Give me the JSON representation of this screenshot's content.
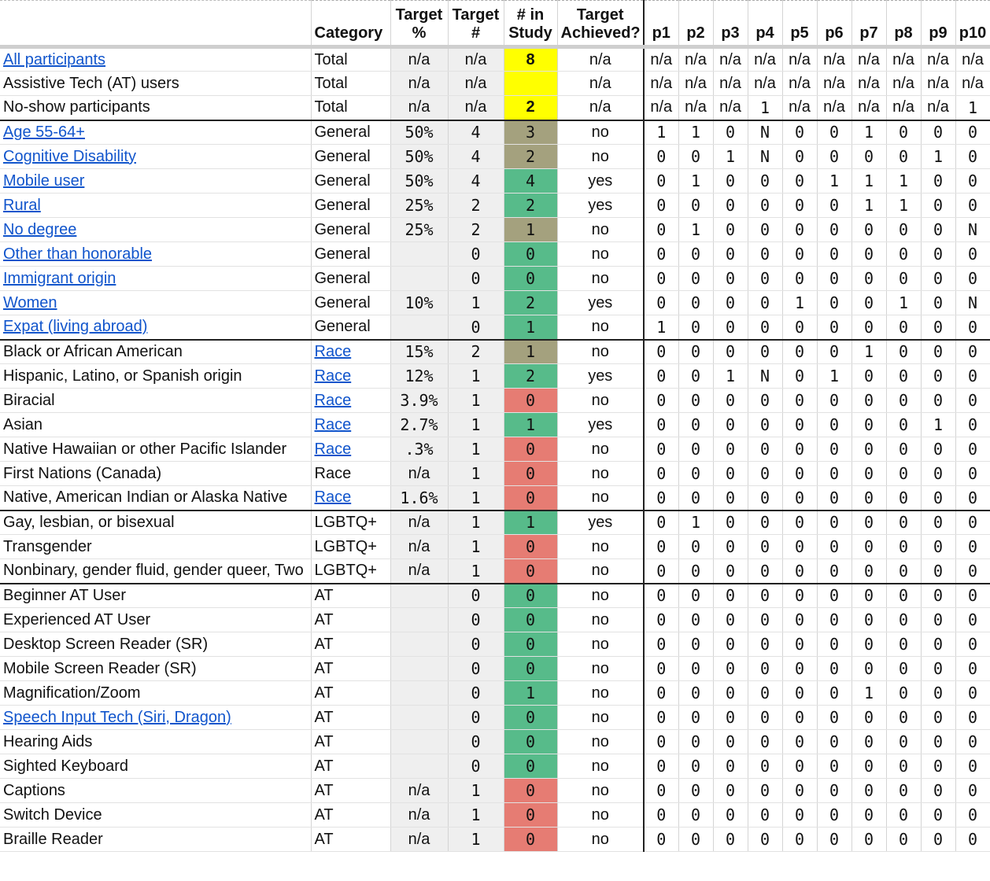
{
  "headers": {
    "label": "",
    "category": "Category",
    "target_pct": "Target %",
    "target_num": "Target #",
    "in_study": "# in Study",
    "achieved": "Target Achieved?",
    "participants": [
      "p1",
      "p2",
      "p3",
      "p4",
      "p5",
      "p6",
      "p7",
      "p8",
      "p9",
      "p10"
    ]
  },
  "colors": {
    "yellow": "#ffff00",
    "green": "#57bb8a",
    "olive": "#a4a17e",
    "red": "#e67c73",
    "link": "#1155cc"
  },
  "rows": [
    {
      "label": "All participants",
      "link": true,
      "category": "Total",
      "cat_link": false,
      "pct": "n/a",
      "num": "n/a",
      "study": "8",
      "study_color": "yellow",
      "bold": true,
      "achieved": "n/a",
      "p": [
        "n/a",
        "n/a",
        "n/a",
        "n/a",
        "n/a",
        "n/a",
        "n/a",
        "n/a",
        "n/a",
        "n/a"
      ],
      "group_start": false
    },
    {
      "label": "Assistive Tech (AT) users",
      "link": false,
      "category": "Total",
      "cat_link": false,
      "pct": "n/a",
      "num": "n/a",
      "study": "",
      "study_color": "yellow",
      "bold": true,
      "achieved": "n/a",
      "p": [
        "n/a",
        "n/a",
        "n/a",
        "n/a",
        "n/a",
        "n/a",
        "n/a",
        "n/a",
        "n/a",
        "n/a"
      ],
      "group_start": false
    },
    {
      "label": "No-show participants",
      "link": false,
      "category": "Total",
      "cat_link": false,
      "pct": "n/a",
      "num": "n/a",
      "study": "2",
      "study_color": "yellow",
      "bold": true,
      "achieved": "n/a",
      "p": [
        "n/a",
        "n/a",
        "n/a",
        "1",
        "n/a",
        "n/a",
        "n/a",
        "n/a",
        "n/a",
        "1"
      ],
      "group_start": false
    },
    {
      "label": "Age 55-64+",
      "link": true,
      "category": "General",
      "cat_link": false,
      "pct": "50%",
      "num": "4",
      "study": "3",
      "study_color": "olive",
      "achieved": "no",
      "p": [
        "1",
        "1",
        "0",
        "N",
        "0",
        "0",
        "1",
        "0",
        "0",
        "0"
      ],
      "group_start": true
    },
    {
      "label": "Cognitive Disability",
      "link": true,
      "category": "General",
      "cat_link": false,
      "pct": "50%",
      "num": "4",
      "study": "2",
      "study_color": "olive",
      "achieved": "no",
      "p": [
        "0",
        "0",
        "1",
        "N",
        "0",
        "0",
        "0",
        "0",
        "1",
        "0"
      ],
      "group_start": false
    },
    {
      "label": "Mobile user",
      "link": true,
      "category": "General",
      "cat_link": false,
      "pct": "50%",
      "num": "4",
      "study": "4",
      "study_color": "green",
      "achieved": "yes",
      "p": [
        "0",
        "1",
        "0",
        "0",
        "0",
        "1",
        "1",
        "1",
        "0",
        "0"
      ],
      "group_start": false
    },
    {
      "label": "Rural",
      "link": true,
      "category": "General",
      "cat_link": false,
      "pct": "25%",
      "num": "2",
      "study": "2",
      "study_color": "green",
      "achieved": "yes",
      "p": [
        "0",
        "0",
        "0",
        "0",
        "0",
        "0",
        "1",
        "1",
        "0",
        "0"
      ],
      "group_start": false
    },
    {
      "label": "No degree",
      "link": true,
      "category": "General",
      "cat_link": false,
      "pct": "25%",
      "num": "2",
      "study": "1",
      "study_color": "olive",
      "achieved": "no",
      "p": [
        "0",
        "1",
        "0",
        "0",
        "0",
        "0",
        "0",
        "0",
        "0",
        "N"
      ],
      "group_start": false
    },
    {
      "label": "Other than honorable",
      "link": true,
      "category": "General",
      "cat_link": false,
      "pct": "",
      "num": "0",
      "study": "0",
      "study_color": "green",
      "achieved": "no",
      "p": [
        "0",
        "0",
        "0",
        "0",
        "0",
        "0",
        "0",
        "0",
        "0",
        "0"
      ],
      "group_start": false
    },
    {
      "label": "Immigrant origin",
      "link": true,
      "category": "General",
      "cat_link": false,
      "pct": "",
      "num": "0",
      "study": "0",
      "study_color": "green",
      "achieved": "no",
      "p": [
        "0",
        "0",
        "0",
        "0",
        "0",
        "0",
        "0",
        "0",
        "0",
        "0"
      ],
      "group_start": false
    },
    {
      "label": "Women",
      "link": true,
      "category": "General",
      "cat_link": false,
      "pct": "10%",
      "num": "1",
      "study": "2",
      "study_color": "green",
      "achieved": "yes",
      "p": [
        "0",
        "0",
        "0",
        "0",
        "1",
        "0",
        "0",
        "1",
        "0",
        "N"
      ],
      "group_start": false
    },
    {
      "label": "Expat (living abroad)",
      "link": true,
      "category": "General",
      "cat_link": false,
      "pct": "",
      "num": "0",
      "study": "1",
      "study_color": "green",
      "achieved": "no",
      "p": [
        "1",
        "0",
        "0",
        "0",
        "0",
        "0",
        "0",
        "0",
        "0",
        "0"
      ],
      "group_start": false
    },
    {
      "label": "Black or African American",
      "link": false,
      "category": "Race",
      "cat_link": true,
      "pct": "15%",
      "num": "2",
      "study": "1",
      "study_color": "olive",
      "achieved": "no",
      "p": [
        "0",
        "0",
        "0",
        "0",
        "0",
        "0",
        "1",
        "0",
        "0",
        "0"
      ],
      "group_start": true
    },
    {
      "label": "Hispanic, Latino, or Spanish origin",
      "link": false,
      "category": "Race",
      "cat_link": true,
      "pct": "12%",
      "num": "1",
      "study": "2",
      "study_color": "green",
      "achieved": "yes",
      "p": [
        "0",
        "0",
        "1",
        "N",
        "0",
        "1",
        "0",
        "0",
        "0",
        "0"
      ],
      "group_start": false
    },
    {
      "label": "Biracial",
      "link": false,
      "category": "Race",
      "cat_link": true,
      "pct": "3.9%",
      "num": "1",
      "study": "0",
      "study_color": "red",
      "achieved": "no",
      "p": [
        "0",
        "0",
        "0",
        "0",
        "0",
        "0",
        "0",
        "0",
        "0",
        "0"
      ],
      "group_start": false
    },
    {
      "label": "Asian",
      "link": false,
      "category": "Race",
      "cat_link": true,
      "pct": "2.7%",
      "num": "1",
      "study": "1",
      "study_color": "green",
      "achieved": "yes",
      "p": [
        "0",
        "0",
        "0",
        "0",
        "0",
        "0",
        "0",
        "0",
        "1",
        "0"
      ],
      "group_start": false
    },
    {
      "label": "Native Hawaiian or other Pacific Islander",
      "link": false,
      "category": "Race",
      "cat_link": true,
      "pct": ".3%",
      "num": "1",
      "study": "0",
      "study_color": "red",
      "achieved": "no",
      "p": [
        "0",
        "0",
        "0",
        "0",
        "0",
        "0",
        "0",
        "0",
        "0",
        "0"
      ],
      "group_start": false
    },
    {
      "label": "First Nations (Canada)",
      "link": false,
      "category": "Race",
      "cat_link": false,
      "pct": "n/a",
      "num": "1",
      "study": "0",
      "study_color": "red",
      "achieved": "no",
      "p": [
        "0",
        "0",
        "0",
        "0",
        "0",
        "0",
        "0",
        "0",
        "0",
        "0"
      ],
      "group_start": false
    },
    {
      "label": "Native, American Indian or Alaska Native",
      "link": false,
      "category": "Race",
      "cat_link": true,
      "pct": "1.6%",
      "num": "1",
      "study": "0",
      "study_color": "red",
      "achieved": "no",
      "p": [
        "0",
        "0",
        "0",
        "0",
        "0",
        "0",
        "0",
        "0",
        "0",
        "0"
      ],
      "group_start": false
    },
    {
      "label": "Gay, lesbian, or bisexual",
      "link": false,
      "category": "LGBTQ+",
      "cat_link": false,
      "pct": "n/a",
      "num": "1",
      "study": "1",
      "study_color": "green",
      "achieved": "yes",
      "p": [
        "0",
        "1",
        "0",
        "0",
        "0",
        "0",
        "0",
        "0",
        "0",
        "0"
      ],
      "group_start": true
    },
    {
      "label": "Transgender",
      "link": false,
      "category": "LGBTQ+",
      "cat_link": false,
      "pct": "n/a",
      "num": "1",
      "study": "0",
      "study_color": "red",
      "achieved": "no",
      "p": [
        "0",
        "0",
        "0",
        "0",
        "0",
        "0",
        "0",
        "0",
        "0",
        "0"
      ],
      "group_start": false
    },
    {
      "label": "Nonbinary, gender fluid, gender queer, Two",
      "link": false,
      "category": "LGBTQ+",
      "cat_link": false,
      "pct": "n/a",
      "num": "1",
      "study": "0",
      "study_color": "red",
      "achieved": "no",
      "p": [
        "0",
        "0",
        "0",
        "0",
        "0",
        "0",
        "0",
        "0",
        "0",
        "0"
      ],
      "group_start": false
    },
    {
      "label": "Beginner AT User",
      "link": false,
      "category": "AT",
      "cat_link": false,
      "pct": "",
      "num": "0",
      "study": "0",
      "study_color": "green",
      "achieved": "no",
      "p": [
        "0",
        "0",
        "0",
        "0",
        "0",
        "0",
        "0",
        "0",
        "0",
        "0"
      ],
      "group_start": true
    },
    {
      "label": "Experienced AT User",
      "link": false,
      "category": "AT",
      "cat_link": false,
      "pct": "",
      "num": "0",
      "study": "0",
      "study_color": "green",
      "achieved": "no",
      "p": [
        "0",
        "0",
        "0",
        "0",
        "0",
        "0",
        "0",
        "0",
        "0",
        "0"
      ],
      "group_start": false
    },
    {
      "label": "Desktop Screen Reader (SR)",
      "link": false,
      "category": "AT",
      "cat_link": false,
      "pct": "",
      "num": "0",
      "study": "0",
      "study_color": "green",
      "achieved": "no",
      "p": [
        "0",
        "0",
        "0",
        "0",
        "0",
        "0",
        "0",
        "0",
        "0",
        "0"
      ],
      "group_start": false
    },
    {
      "label": "Mobile Screen Reader (SR)",
      "link": false,
      "category": "AT",
      "cat_link": false,
      "pct": "",
      "num": "0",
      "study": "0",
      "study_color": "green",
      "achieved": "no",
      "p": [
        "0",
        "0",
        "0",
        "0",
        "0",
        "0",
        "0",
        "0",
        "0",
        "0"
      ],
      "group_start": false
    },
    {
      "label": "Magnification/Zoom",
      "link": false,
      "category": "AT",
      "cat_link": false,
      "pct": "",
      "num": "0",
      "study": "1",
      "study_color": "green",
      "achieved": "no",
      "p": [
        "0",
        "0",
        "0",
        "0",
        "0",
        "0",
        "1",
        "0",
        "0",
        "0"
      ],
      "group_start": false
    },
    {
      "label": "Speech Input Tech (Siri, Dragon)",
      "link": true,
      "category": "AT",
      "cat_link": false,
      "pct": "",
      "num": "0",
      "study": "0",
      "study_color": "green",
      "achieved": "no",
      "p": [
        "0",
        "0",
        "0",
        "0",
        "0",
        "0",
        "0",
        "0",
        "0",
        "0"
      ],
      "group_start": false
    },
    {
      "label": "Hearing Aids",
      "link": false,
      "category": "AT",
      "cat_link": false,
      "pct": "",
      "num": "0",
      "study": "0",
      "study_color": "green",
      "achieved": "no",
      "p": [
        "0",
        "0",
        "0",
        "0",
        "0",
        "0",
        "0",
        "0",
        "0",
        "0"
      ],
      "group_start": false
    },
    {
      "label": "Sighted Keyboard",
      "link": false,
      "category": "AT",
      "cat_link": false,
      "pct": "",
      "num": "0",
      "study": "0",
      "study_color": "green",
      "achieved": "no",
      "p": [
        "0",
        "0",
        "0",
        "0",
        "0",
        "0",
        "0",
        "0",
        "0",
        "0"
      ],
      "group_start": false
    },
    {
      "label": "Captions",
      "link": false,
      "category": "AT",
      "cat_link": false,
      "pct": "n/a",
      "num": "1",
      "study": "0",
      "study_color": "red",
      "achieved": "no",
      "p": [
        "0",
        "0",
        "0",
        "0",
        "0",
        "0",
        "0",
        "0",
        "0",
        "0"
      ],
      "group_start": false
    },
    {
      "label": "Switch Device",
      "link": false,
      "category": "AT",
      "cat_link": false,
      "pct": "n/a",
      "num": "1",
      "study": "0",
      "study_color": "red",
      "achieved": "no",
      "p": [
        "0",
        "0",
        "0",
        "0",
        "0",
        "0",
        "0",
        "0",
        "0",
        "0"
      ],
      "group_start": false
    },
    {
      "label": "Braille Reader",
      "link": false,
      "category": "AT",
      "cat_link": false,
      "pct": "n/a",
      "num": "1",
      "study": "0",
      "study_color": "red",
      "achieved": "no",
      "p": [
        "0",
        "0",
        "0",
        "0",
        "0",
        "0",
        "0",
        "0",
        "0",
        "0"
      ],
      "group_start": false
    }
  ]
}
